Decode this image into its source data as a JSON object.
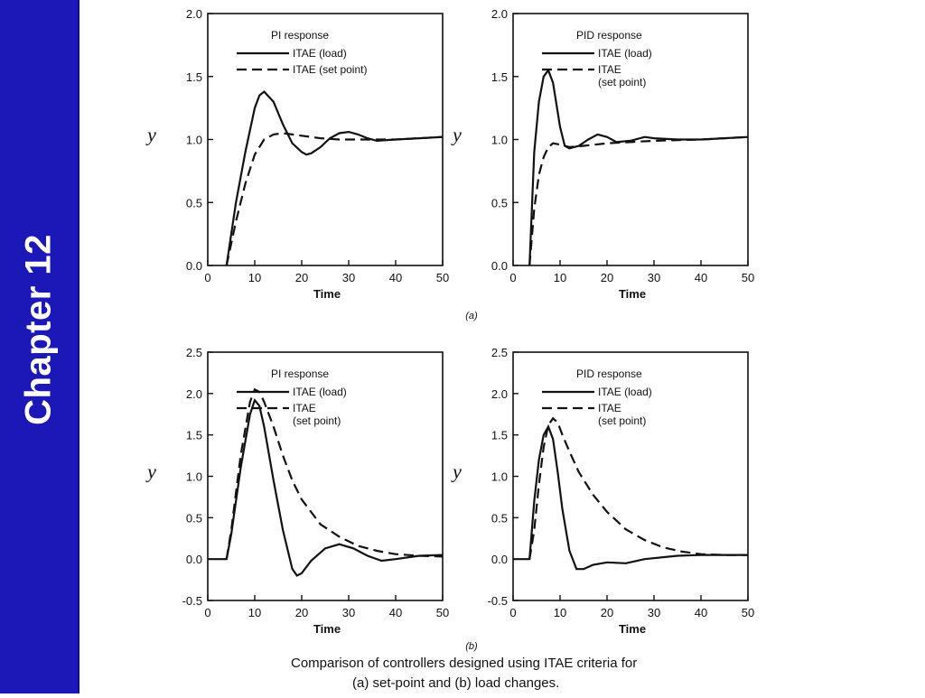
{
  "sidebar": {
    "title": "Chapter 12"
  },
  "section_tags": {
    "a": "(a)",
    "b": "(b)"
  },
  "caption": {
    "line1": "Comparison of controllers designed using ITAE criteria for",
    "line2": "(a) set-point and (b) load changes."
  },
  "colors": {
    "sidebar": "#1c18b8",
    "sidebar_text": "#ffffff",
    "ink": "#111111"
  },
  "chart_data": [
    {
      "type": "line",
      "legend_title": "PI response",
      "xlabel": "Time",
      "ylabel": "y",
      "xlim": [
        0,
        50
      ],
      "ylim": [
        0,
        2
      ],
      "xticks": [
        0,
        10,
        20,
        30,
        40,
        50
      ],
      "yticks": [
        "0.0",
        "0.5",
        "1.0",
        "1.5",
        "2.0"
      ],
      "legend_loc": "top-right",
      "series": [
        {
          "name": "ITAE (load)",
          "style": "solid",
          "x": [
            4,
            6,
            8,
            10,
            11,
            12,
            14,
            16,
            18,
            20,
            21,
            22,
            24,
            26,
            28,
            30,
            32,
            34,
            36,
            40,
            45,
            50
          ],
          "y": [
            0,
            0.5,
            0.9,
            1.25,
            1.35,
            1.38,
            1.3,
            1.12,
            0.97,
            0.9,
            0.88,
            0.89,
            0.94,
            1.01,
            1.05,
            1.06,
            1.04,
            1.01,
            0.99,
            1.0,
            1.01,
            1.02
          ]
        },
        {
          "name": "ITAE (set point)",
          "style": "dashed",
          "x": [
            4,
            6,
            8,
            10,
            12,
            14,
            16,
            18,
            20,
            24,
            28,
            32,
            36,
            40,
            45,
            50
          ],
          "y": [
            0,
            0.35,
            0.65,
            0.88,
            1.0,
            1.04,
            1.05,
            1.04,
            1.03,
            1.01,
            1.0,
            1.0,
            1.0,
            1.0,
            1.01,
            1.02
          ]
        }
      ]
    },
    {
      "type": "line",
      "legend_title": "PID response",
      "xlabel": "Time",
      "ylabel": "y",
      "xlim": [
        0,
        50
      ],
      "ylim": [
        0,
        2
      ],
      "xticks": [
        0,
        10,
        20,
        30,
        40,
        50
      ],
      "yticks": [
        "0.0",
        "0.5",
        "1.0",
        "1.5",
        "2.0"
      ],
      "legend_loc": "top-right",
      "series": [
        {
          "name": "ITAE (load)",
          "style": "solid",
          "x": [
            3.5,
            4.5,
            5.5,
            6.5,
            7.5,
            8.5,
            10,
            11,
            12,
            14,
            16,
            18,
            20,
            22,
            25,
            28,
            30,
            35,
            40,
            45,
            50
          ],
          "y": [
            0,
            0.9,
            1.3,
            1.5,
            1.55,
            1.45,
            1.1,
            0.95,
            0.93,
            0.95,
            1.0,
            1.04,
            1.02,
            0.98,
            0.99,
            1.02,
            1.01,
            1.0,
            1.0,
            1.01,
            1.02
          ]
        },
        {
          "name": "ITAE\n(set point)",
          "style": "dashed",
          "x": [
            3.5,
            4.5,
            5.5,
            6.5,
            7.5,
            8.5,
            10,
            12,
            15,
            20,
            30,
            40,
            50
          ],
          "y": [
            0,
            0.45,
            0.72,
            0.86,
            0.94,
            0.97,
            0.96,
            0.94,
            0.95,
            0.97,
            0.99,
            1.0,
            1.02
          ]
        }
      ]
    },
    {
      "type": "line",
      "legend_title": "PI response",
      "xlabel": "Time",
      "ylabel": "y",
      "xlim": [
        0,
        50
      ],
      "ylim": [
        -0.5,
        2.5
      ],
      "xticks": [
        0,
        10,
        20,
        30,
        40,
        50
      ],
      "yticks": [
        "-0.5",
        "0.0",
        "0.5",
        "1.0",
        "1.5",
        "2.0",
        "2.5"
      ],
      "legend_loc": "top-right",
      "series": [
        {
          "name": "ITAE (load)",
          "style": "solid",
          "x": [
            0,
            4,
            5,
            7,
            9,
            10,
            11,
            12,
            14,
            16,
            18,
            19,
            20,
            22,
            25,
            28,
            31,
            34,
            37,
            40,
            45,
            50
          ],
          "y": [
            0,
            0,
            0.3,
            1.1,
            1.75,
            1.92,
            1.85,
            1.6,
            0.95,
            0.35,
            -0.12,
            -0.2,
            -0.17,
            -0.02,
            0.13,
            0.18,
            0.13,
            0.04,
            -0.02,
            0.0,
            0.04,
            0.05
          ]
        },
        {
          "name": "ITAE\n(set point)",
          "style": "dashed",
          "x": [
            4,
            5,
            7,
            9,
            10,
            11,
            12,
            14,
            16,
            18,
            20,
            24,
            28,
            32,
            36,
            40,
            45,
            50
          ],
          "y": [
            0,
            0.35,
            1.25,
            1.9,
            2.05,
            2.02,
            1.9,
            1.6,
            1.25,
            0.95,
            0.72,
            0.42,
            0.27,
            0.16,
            0.1,
            0.06,
            0.04,
            0.03
          ]
        }
      ]
    },
    {
      "type": "line",
      "legend_title": "PID response",
      "xlabel": "Time",
      "ylabel": "y",
      "xlim": [
        0,
        50
      ],
      "ylim": [
        -0.5,
        2.5
      ],
      "xticks": [
        "0",
        "10",
        "20",
        "30",
        "40",
        "50"
      ],
      "yticks": [
        "-0.5",
        "0.0",
        "0.5",
        "1.0",
        "1.5",
        "2.0",
        "2.5"
      ],
      "legend_loc": "top-right",
      "series": [
        {
          "name": "ITAE (load)",
          "style": "solid",
          "x": [
            0,
            3.5,
            4.5,
            5.5,
            6.5,
            7.5,
            8.5,
            9.5,
            10.5,
            12,
            13.5,
            15,
            17,
            20,
            24,
            28,
            35,
            40,
            45,
            50
          ],
          "y": [
            0,
            0,
            0.7,
            1.2,
            1.5,
            1.6,
            1.45,
            1.05,
            0.6,
            0.1,
            -0.12,
            -0.12,
            -0.07,
            -0.04,
            -0.05,
            0.0,
            0.04,
            0.05,
            0.05,
            0.05
          ]
        },
        {
          "name": "ITAE\n(set point)",
          "style": "dashed",
          "x": [
            3.5,
            4.5,
            5.5,
            6.5,
            7.5,
            8.5,
            9.5,
            10.5,
            12,
            14,
            17,
            20,
            24,
            28,
            32,
            36,
            40,
            45,
            50
          ],
          "y": [
            0,
            0.35,
            0.9,
            1.35,
            1.62,
            1.7,
            1.65,
            1.5,
            1.3,
            1.05,
            0.78,
            0.57,
            0.36,
            0.23,
            0.14,
            0.09,
            0.06,
            0.05,
            0.05
          ]
        }
      ]
    }
  ]
}
